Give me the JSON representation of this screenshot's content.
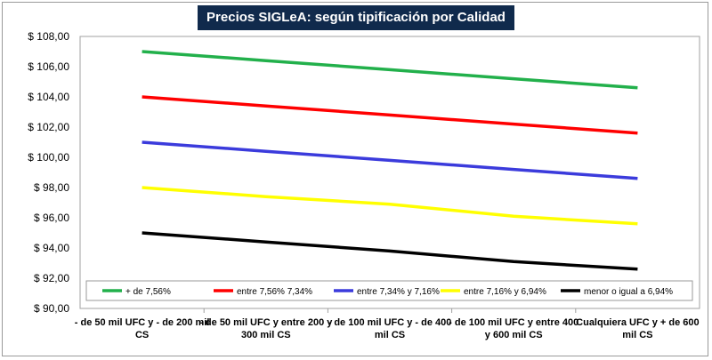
{
  "chart_data": {
    "type": "line",
    "title": "Precios SIGLeA: según tipificación por Calidad",
    "xlabel": "",
    "ylabel": "",
    "categories": [
      [
        "- de 50 mil UFC y - de 200 mil",
        "CS"
      ],
      [
        "- de 50 mil UFC y entre  200 y",
        "300 mil CS"
      ],
      [
        "- de 100 mil UFC y - de 400",
        "mil CS"
      ],
      [
        "- de 100 mil UFC y entre  400",
        "y 600 mil CS"
      ],
      [
        "Cualquiera UFC y + de 600",
        "mil CS"
      ]
    ],
    "ylim": [
      90,
      108
    ],
    "yticks": [
      "$ 90,00",
      "$ 92,00",
      "$ 94,00",
      "$ 96,00",
      "$ 98,00",
      "$ 100,00",
      "$ 102,00",
      "$ 104,00",
      "$ 106,00",
      "$ 108,00"
    ],
    "grid": false,
    "legend_position": "bottom-inside",
    "series": [
      {
        "name": "+ de 7,56%",
        "color": "#22b04b",
        "values": [
          107.0,
          106.4,
          105.8,
          105.2,
          104.6
        ]
      },
      {
        "name": "entre 7,56% 7,34%",
        "color": "#ff0000",
        "values": [
          104.0,
          103.4,
          102.8,
          102.2,
          101.6
        ]
      },
      {
        "name": "entre 7,34% y 7,16%",
        "color": "#3b3bdc",
        "values": [
          101.0,
          100.4,
          99.8,
          99.2,
          98.6
        ]
      },
      {
        "name": "entre 7,16% y 6,94%",
        "color": "#ffff00",
        "values": [
          98.0,
          97.4,
          96.9,
          96.1,
          95.6
        ]
      },
      {
        "name": "menor o igual a 6,94%",
        "color": "#000000",
        "values": [
          95.0,
          94.4,
          93.8,
          93.1,
          92.6
        ]
      }
    ]
  }
}
